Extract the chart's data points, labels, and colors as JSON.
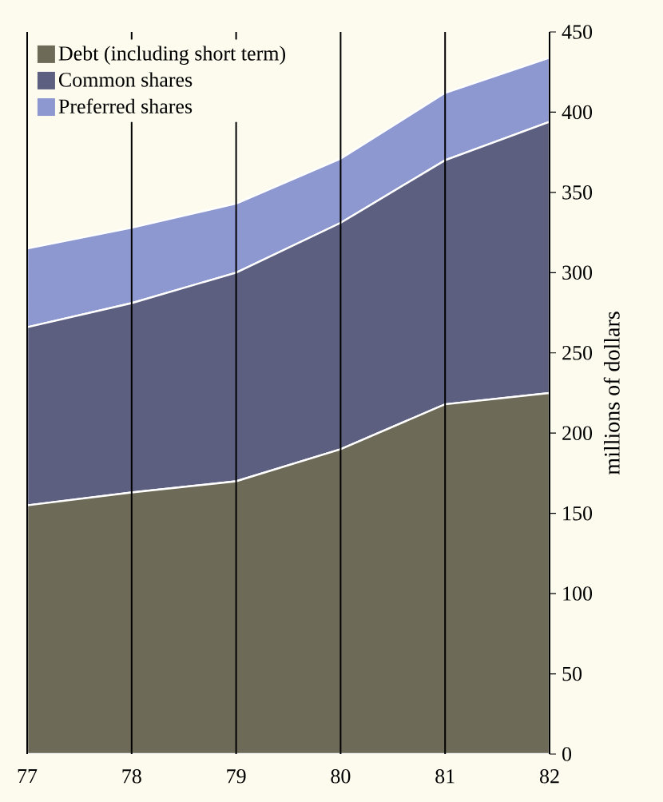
{
  "chart_data": {
    "type": "area",
    "stacked": true,
    "ylabel": "millions of dollars",
    "categories": [
      "77",
      "78",
      "79",
      "80",
      "81",
      "82"
    ],
    "series": [
      {
        "name": "Debt (including short term)",
        "color": "#6e6a58",
        "values": [
          155,
          163,
          170,
          190,
          218,
          225
        ]
      },
      {
        "name": "Common shares",
        "color": "#5c5f80",
        "values": [
          111,
          118,
          130,
          141,
          152,
          169
        ]
      },
      {
        "name": "Preferred shares",
        "color": "#8e98d0",
        "values": [
          49,
          47,
          43,
          40,
          42,
          40
        ]
      }
    ],
    "ylim": [
      0,
      450
    ],
    "yticks": [
      0,
      50,
      100,
      150,
      200,
      250,
      300,
      350,
      400,
      450
    ],
    "grid": "x",
    "legend": "top left"
  }
}
